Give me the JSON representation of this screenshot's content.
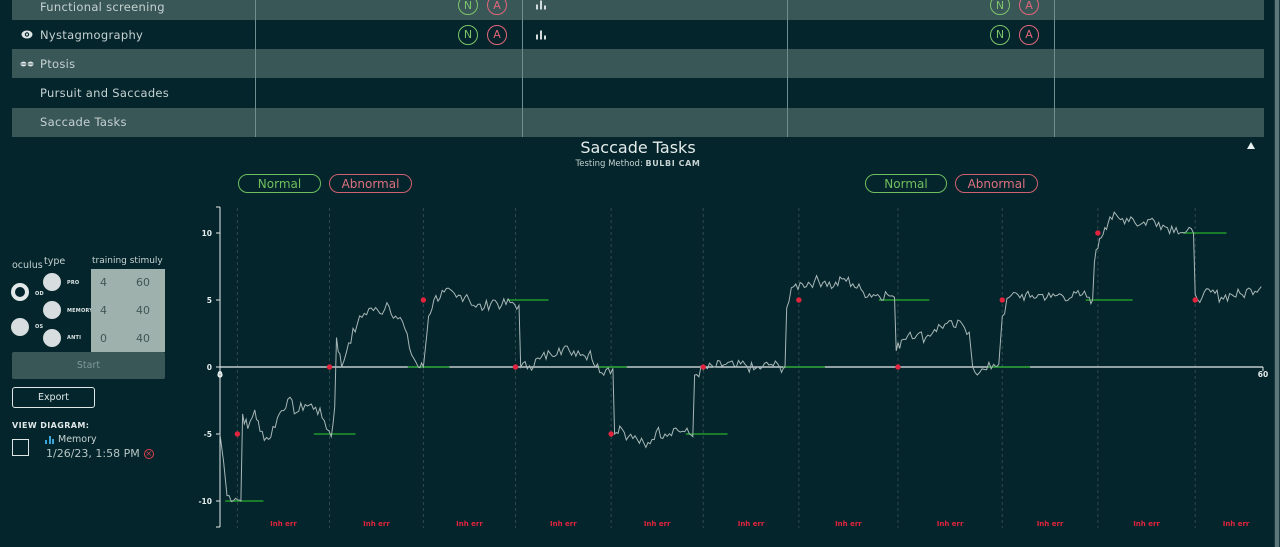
{
  "table": {
    "rows": [
      {
        "label": "Functional screening",
        "icon": "",
        "shade": "light",
        "badges": true
      },
      {
        "label": "Nystagmography",
        "icon": "eye-icon",
        "shade": "dark",
        "badges": true
      },
      {
        "label": "Ptosis",
        "icon": "eyes-icon",
        "shade": "light",
        "badges": false
      },
      {
        "label": "Pursuit and Saccades",
        "icon": "",
        "shade": "dark",
        "badges": false
      },
      {
        "label": "Saccade Tasks",
        "icon": "",
        "shade": "light",
        "badges": false
      }
    ],
    "badge_n": "N",
    "badge_a": "A",
    "chart_icon": "bar-chart-icon"
  },
  "section": {
    "title": "Saccade Tasks",
    "testing_method_label": "Testing Method:",
    "testing_method_value": "BULBI CAM",
    "collapse_icon": "triangle-up-icon",
    "left_pills": {
      "normal": "Normal",
      "abnormal": "Abnormal"
    },
    "right_pills": {
      "normal": "Normal",
      "abnormal": "Abnormal"
    }
  },
  "controls": {
    "oculus_label": "oculus",
    "type_label": "type",
    "training_stimuly_label": "training stimuly",
    "oculus_options": [
      {
        "label": "OD",
        "selected": true
      },
      {
        "label": "OS",
        "selected": false
      }
    ],
    "type_options": [
      {
        "label": "PRO",
        "training": "4",
        "stimuly": "60"
      },
      {
        "label": "MEMORY",
        "training": "4",
        "stimuly": "40"
      },
      {
        "label": "ANTI",
        "training": "0",
        "stimuly": "40"
      }
    ],
    "start_label": "Start",
    "export_label": "Export",
    "view_diagram_label": "VIEW DIAGRAM:",
    "diagram": {
      "name": "Memory",
      "timestamp": "1/26/23, 1:58 PM",
      "delete_icon": "close-circle-icon"
    }
  },
  "chart_data": {
    "type": "line",
    "title": "Saccade Tasks",
    "xlabel": "",
    "ylabel": "",
    "xlim": [
      0,
      60
    ],
    "ylim": [
      -12,
      12
    ],
    "x_ticks": [
      "0",
      "60"
    ],
    "y_ticks": [
      "10",
      "5",
      "0",
      "-5",
      "-10"
    ],
    "trial_markers_x": [
      1,
      6.3,
      11.7,
      17,
      22.5,
      27.8,
      33.3,
      39,
      45,
      50.5,
      56.1
    ],
    "trial_labels": [
      "Inh err",
      "Inh err",
      "Inh err",
      "Inh err",
      "Inh err",
      "Inh err",
      "Inh err",
      "Inh err",
      "Inh err",
      "Inh err",
      "Inh err"
    ],
    "targets": [
      {
        "x": 1,
        "y": -5
      },
      {
        "x": 6.3,
        "y": 0
      },
      {
        "x": 11.7,
        "y": 5
      },
      {
        "x": 17,
        "y": 0
      },
      {
        "x": 22.5,
        "y": -5
      },
      {
        "x": 27.8,
        "y": 0
      },
      {
        "x": 33.3,
        "y": 5
      },
      {
        "x": 39,
        "y": 0
      },
      {
        "x": 45,
        "y": 5
      },
      {
        "x": 50.5,
        "y": 10
      },
      {
        "x": 56.1,
        "y": 5
      }
    ],
    "fixation_segments": [
      {
        "x0": 0.3,
        "x1": 2.5,
        "y": -10
      },
      {
        "x0": 5.4,
        "x1": 7.8,
        "y": -5
      },
      {
        "x0": 10.8,
        "x1": 13.2,
        "y": 0
      },
      {
        "x0": 16.5,
        "x1": 18.9,
        "y": 5
      },
      {
        "x0": 21.8,
        "x1": 23.4,
        "y": 0
      },
      {
        "x0": 26.8,
        "x1": 29.2,
        "y": -5
      },
      {
        "x0": 32.4,
        "x1": 34.8,
        "y": 0
      },
      {
        "x0": 37.9,
        "x1": 40.8,
        "y": 5
      },
      {
        "x0": 44.2,
        "x1": 46.6,
        "y": 0
      },
      {
        "x0": 49.8,
        "x1": 52.5,
        "y": 5
      },
      {
        "x0": 55.4,
        "x1": 57.9,
        "y": 10
      }
    ],
    "series": [
      {
        "name": "eye position",
        "points": [
          [
            0,
            -5
          ],
          [
            0.2,
            -7
          ],
          [
            0.4,
            -9.6
          ],
          [
            0.9,
            -9.8
          ],
          [
            1.2,
            -10
          ],
          [
            1.3,
            -3.5
          ],
          [
            1.6,
            -4.6
          ],
          [
            2,
            -3.2
          ],
          [
            2.3,
            -4.8
          ],
          [
            2.8,
            -5.4
          ],
          [
            3.3,
            -3.8
          ],
          [
            3.9,
            -2.4
          ],
          [
            4.4,
            -3.4
          ],
          [
            4.9,
            -2.8
          ],
          [
            5.5,
            -3
          ],
          [
            6,
            -4
          ],
          [
            6.4,
            -5.2
          ],
          [
            6.6,
            -3
          ],
          [
            6.7,
            2.2
          ],
          [
            7,
            0
          ],
          [
            7.4,
            1.8
          ],
          [
            7.9,
            3.2
          ],
          [
            8.3,
            4
          ],
          [
            8.7,
            4.4
          ],
          [
            9.2,
            4
          ],
          [
            9.6,
            4.8
          ],
          [
            10.1,
            3.8
          ],
          [
            10.5,
            3.4
          ],
          [
            10.9,
            1.4
          ],
          [
            11.4,
            0
          ],
          [
            11.7,
            0
          ],
          [
            12,
            3.8
          ],
          [
            12.3,
            5
          ],
          [
            12.9,
            5.6
          ],
          [
            13.6,
            5.2
          ],
          [
            14.2,
            5.4
          ],
          [
            14.6,
            4.6
          ],
          [
            15.2,
            4.4
          ],
          [
            15.7,
            5
          ],
          [
            16.2,
            4.6
          ],
          [
            16.7,
            4.8
          ],
          [
            17.2,
            4.6
          ],
          [
            17.3,
            0
          ],
          [
            17.8,
            0.1
          ],
          [
            18.4,
            0.6
          ],
          [
            19,
            1
          ],
          [
            19.5,
            1.4
          ],
          [
            20.1,
            1.2
          ],
          [
            20.6,
            1.2
          ],
          [
            21,
            0.8
          ],
          [
            21.3,
            1.2
          ],
          [
            21.6,
            0
          ],
          [
            22.2,
            -0.2
          ],
          [
            22.6,
            -0.1
          ],
          [
            22.7,
            -5
          ],
          [
            23,
            -4.4
          ],
          [
            23.5,
            -5.2
          ],
          [
            24,
            -5.4
          ],
          [
            24.5,
            -6
          ],
          [
            25.1,
            -4.8
          ],
          [
            25.6,
            -5
          ],
          [
            26.1,
            -4.6
          ],
          [
            26.6,
            -4.8
          ],
          [
            27,
            -5
          ],
          [
            27.2,
            -5.2
          ],
          [
            27.3,
            -0.6
          ],
          [
            27.8,
            -0.2
          ],
          [
            28.4,
            0
          ],
          [
            29.1,
            0.2
          ],
          [
            29.7,
            0
          ],
          [
            30.2,
            0.2
          ],
          [
            30.7,
            -0.2
          ],
          [
            31.2,
            0
          ],
          [
            31.7,
            0.2
          ],
          [
            32.2,
            0
          ],
          [
            32.5,
            0
          ],
          [
            32.6,
            4.4
          ],
          [
            33,
            6
          ],
          [
            33.5,
            6.2
          ],
          [
            34.2,
            6.4
          ],
          [
            34.8,
            6.4
          ],
          [
            35.3,
            6
          ],
          [
            35.9,
            6.6
          ],
          [
            36.4,
            6.2
          ],
          [
            37,
            5.6
          ],
          [
            37.6,
            5.4
          ],
          [
            38.4,
            5.4
          ],
          [
            38.8,
            5.2
          ],
          [
            38.9,
            1.2
          ],
          [
            39.2,
            2
          ],
          [
            39.7,
            2.6
          ],
          [
            40.1,
            2.4
          ],
          [
            40.6,
            2.2
          ],
          [
            41.1,
            2.8
          ],
          [
            41.7,
            3.2
          ],
          [
            42.2,
            3
          ],
          [
            42.7,
            3.2
          ],
          [
            43.1,
            2.6
          ],
          [
            43.3,
            0
          ],
          [
            43.7,
            -0.4
          ],
          [
            44.1,
            -0.2
          ],
          [
            44.5,
            0.2
          ],
          [
            44.8,
            0.2
          ],
          [
            45,
            3.8
          ],
          [
            45.4,
            5.2
          ],
          [
            45.9,
            5.4
          ],
          [
            46.6,
            5.2
          ],
          [
            47.2,
            5.4
          ],
          [
            47.8,
            5.2
          ],
          [
            48.4,
            5.4
          ],
          [
            49,
            5.2
          ],
          [
            49.6,
            5.4
          ],
          [
            50,
            5.2
          ],
          [
            50.2,
            5
          ],
          [
            50.3,
            7.8
          ],
          [
            50.6,
            9.6
          ],
          [
            50.9,
            10.4
          ],
          [
            51.2,
            11.2
          ],
          [
            51.8,
            11
          ],
          [
            52.4,
            11.2
          ],
          [
            52.9,
            10.6
          ],
          [
            53.5,
            11
          ],
          [
            54,
            10.8
          ],
          [
            54.5,
            10.4
          ],
          [
            55,
            10.4
          ],
          [
            55.5,
            10
          ],
          [
            56,
            10
          ],
          [
            56.1,
            5.4
          ],
          [
            56.5,
            5.2
          ],
          [
            57,
            5.6
          ],
          [
            57.6,
            5.2
          ],
          [
            58.2,
            5.4
          ],
          [
            58.8,
            5.4
          ],
          [
            59.3,
            5.8
          ],
          [
            59.9,
            6
          ]
        ]
      }
    ],
    "colors": {
      "trace": "#a9b7b7",
      "target": "#e0243e",
      "fixation": "#1f9a2a",
      "axis": "#e6ecec",
      "error_label": "#e0243e"
    }
  }
}
